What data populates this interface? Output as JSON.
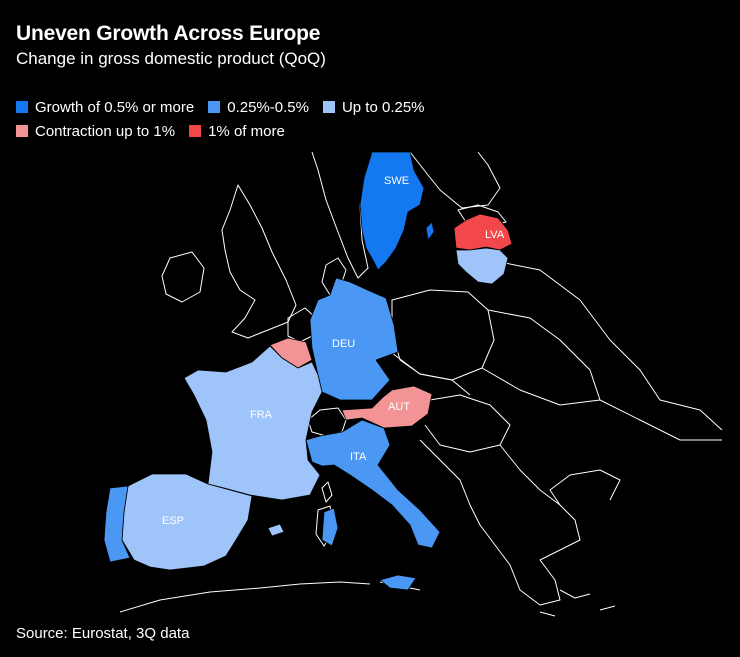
{
  "title": "Uneven Growth Across Europe",
  "subtitle": "Change in gross domestic product (QoQ)",
  "legend": [
    {
      "label": "Growth of 0.5% or more",
      "color": "#1478f0"
    },
    {
      "label": "0.25%-0.5%",
      "color": "#4a98f4"
    },
    {
      "label": "Up to 0.25%",
      "color": "#9ec4fa"
    },
    {
      "label": "Contraction up to 1%",
      "color": "#f29495"
    },
    {
      "label": "1% of more",
      "color": "#f2484c"
    }
  ],
  "countries": {
    "swe": {
      "label": "SWE",
      "category": "Growth of 0.5% or more"
    },
    "lva": {
      "label": "LVA",
      "category": "1% of more"
    },
    "ltu": {
      "category": "Up to 0.25%"
    },
    "deu": {
      "label": "DEU",
      "category": "0.25%-0.5%"
    },
    "bel": {
      "category": "Contraction up to 1%"
    },
    "fra": {
      "label": "FRA",
      "category": "Up to 0.25%"
    },
    "aut": {
      "label": "AUT",
      "category": "Contraction up to 1%"
    },
    "ita": {
      "label": "ITA",
      "category": "0.25%-0.5%"
    },
    "esp": {
      "label": "ESP",
      "category": "Up to 0.25%"
    },
    "prt": {
      "category": "0.25%-0.5%"
    }
  },
  "source": "Source: Eurostat, 3Q data"
}
